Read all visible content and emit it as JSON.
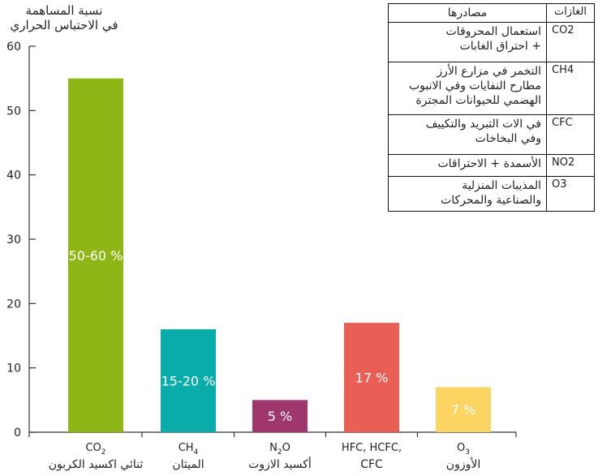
{
  "chart_data": {
    "type": "bar",
    "ylabel_lines": [
      "نسبة المساهمة",
      "في الاحتباس الحراري"
    ],
    "ylim": [
      0,
      60
    ],
    "yticks": [
      0,
      10,
      20,
      30,
      40,
      50,
      60
    ],
    "grid": false,
    "categories": [
      {
        "formula": "CO",
        "sub": "2",
        "formula_suffix": "",
        "name": "ثنائي اكسيد الكربون"
      },
      {
        "formula": "CH",
        "sub": "4",
        "formula_suffix": "",
        "name": "الميثان"
      },
      {
        "formula": "N",
        "sub": "2",
        "formula_suffix": "O",
        "name": "أكسيد الازوت"
      },
      {
        "formula": "HFC, HCFC,",
        "sub": "",
        "formula_suffix": "",
        "name": "CFC"
      },
      {
        "formula": "O",
        "sub": "3",
        "formula_suffix": "",
        "name": "الأوزون"
      }
    ],
    "values": [
      55,
      16,
      5,
      17,
      7
    ],
    "bar_labels": [
      "50-60 %",
      "15-20 %",
      "5 %",
      "17 %",
      "7 %"
    ],
    "colors": [
      "#8db616",
      "#0aaca9",
      "#a0366e",
      "#e95f55",
      "#fbd462"
    ]
  },
  "table": {
    "header": {
      "sources": "مصادرها",
      "gases": "الغازات"
    },
    "rows": [
      {
        "gas": "CO2",
        "source_lines": [
          "استعمال المحروقات",
          "+ احتراق الغابات"
        ]
      },
      {
        "gas": "CH4",
        "source_lines": [
          "التخمر في مزارع الأرز",
          "مطارح النفايات وفي الانبوب",
          "الهضمي للحيوانات المجترة"
        ]
      },
      {
        "gas": "CFC",
        "source_lines": [
          "في الات التبريد والتكييف",
          "وفي البخاخات"
        ]
      },
      {
        "gas": "NO2",
        "source_lines": [
          "الأسمدة + الاحتراقات"
        ]
      },
      {
        "gas": "O3",
        "source_lines": [
          "المذيبات المنزلية",
          "والصناعية والمحركات"
        ]
      }
    ]
  }
}
